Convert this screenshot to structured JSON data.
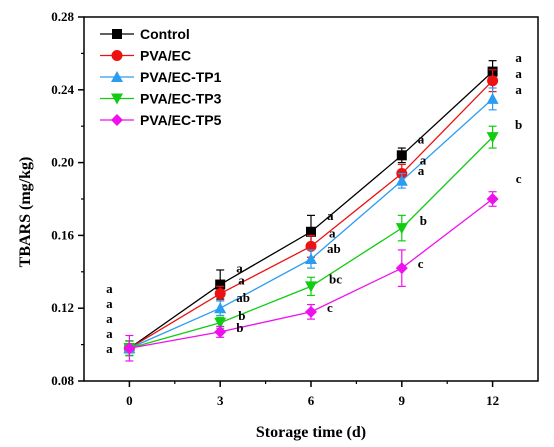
{
  "chart_data": {
    "type": "line",
    "xlabel": "Storage time (d)",
    "ylabel": "TBARS (mg/kg)",
    "x": [
      0,
      3,
      6,
      9,
      12
    ],
    "xticks": [
      "0",
      "3",
      "6",
      "9",
      "12"
    ],
    "xlim": [
      -1.5,
      13.5
    ],
    "ylim": [
      0.08,
      0.28
    ],
    "yticks": [
      "0.08",
      "0.12",
      "0.16",
      "0.20",
      "0.24",
      "0.28"
    ],
    "legend_position": "top-left",
    "series": [
      {
        "name": "Control",
        "color": "#000000",
        "marker": "square",
        "values": [
          0.098,
          0.133,
          0.162,
          0.204,
          0.25
        ],
        "errors": [
          0.004,
          0.008,
          0.009,
          0.004,
          0.006
        ],
        "labels": [
          "a",
          "a",
          "a",
          "a",
          "a"
        ]
      },
      {
        "name": "PVA/EC",
        "color": "#ee1111",
        "marker": "circle",
        "values": [
          0.098,
          0.128,
          0.154,
          0.194,
          0.245
        ],
        "errors": [
          0.004,
          0.004,
          0.006,
          0.005,
          0.006
        ],
        "labels": [
          "a",
          "a",
          "a",
          "a",
          "a"
        ]
      },
      {
        "name": "PVA/EC-TP1",
        "color": "#2b9cf0",
        "marker": "triangle-up",
        "values": [
          0.098,
          0.12,
          0.147,
          0.19,
          0.235
        ],
        "errors": [
          0.004,
          0.004,
          0.005,
          0.004,
          0.006
        ],
        "labels": [
          "a",
          "ab",
          "ab",
          "a",
          "a"
        ]
      },
      {
        "name": "PVA/EC-TP3",
        "color": "#11cc11",
        "marker": "triangle-down",
        "values": [
          0.098,
          0.112,
          0.132,
          0.164,
          0.214
        ],
        "errors": [
          0.004,
          0.003,
          0.005,
          0.007,
          0.006
        ],
        "labels": [
          "a",
          "b",
          "bc",
          "b",
          "b"
        ]
      },
      {
        "name": "PVA/EC-TP5",
        "color": "#ee11ee",
        "marker": "diamond",
        "values": [
          0.098,
          0.107,
          0.118,
          0.142,
          0.18
        ],
        "errors": [
          0.007,
          0.003,
          0.004,
          0.01,
          0.004
        ],
        "labels": [
          "a",
          "b",
          "c",
          "c",
          "c"
        ]
      }
    ]
  }
}
